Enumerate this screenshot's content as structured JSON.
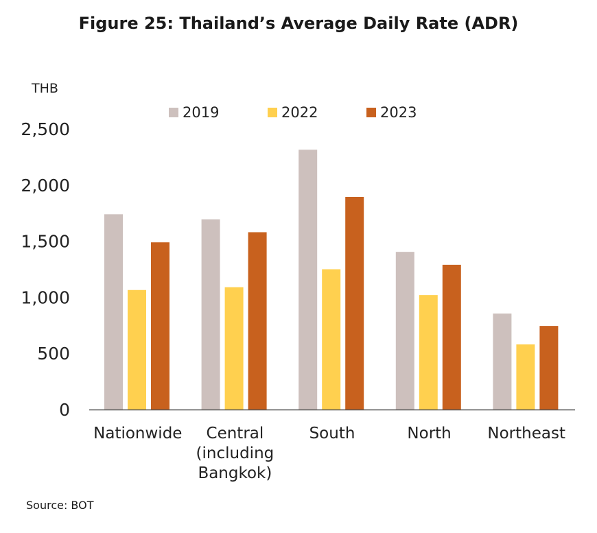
{
  "title": "Figure 25: Thailand’s Average Daily Rate (ADR)",
  "source": "Source: BOT",
  "colors": {
    "2019": "#cdc0bd",
    "2022": "#ffd04f",
    "2023": "#c8611e",
    "axis": "#555555"
  },
  "chart_data": {
    "type": "bar",
    "title": "Figure 25: Thailand’s Average Daily Rate (ADR)",
    "ylabel": "THB",
    "xlabel": "",
    "ylim": [
      0,
      2500
    ],
    "yticks": [
      0,
      500,
      1000,
      1500,
      2000,
      2500
    ],
    "ytick_labels": [
      "0",
      "500",
      "1,000",
      "1,500",
      "2,000",
      "2,500"
    ],
    "grid": false,
    "legend_position": "top",
    "categories": [
      [
        "Nationwide"
      ],
      [
        "Central",
        "(including",
        "Bangkok)"
      ],
      [
        "South"
      ],
      [
        "North"
      ],
      [
        "Northeast"
      ]
    ],
    "series": [
      {
        "name": "2019",
        "color": "#cdc0bd",
        "values": [
          1740,
          1695,
          2315,
          1405,
          855
        ]
      },
      {
        "name": "2022",
        "color": "#ffd04f",
        "values": [
          1065,
          1090,
          1250,
          1020,
          580
        ]
      },
      {
        "name": "2023",
        "color": "#c8611e",
        "values": [
          1490,
          1580,
          1895,
          1290,
          745
        ]
      }
    ]
  }
}
